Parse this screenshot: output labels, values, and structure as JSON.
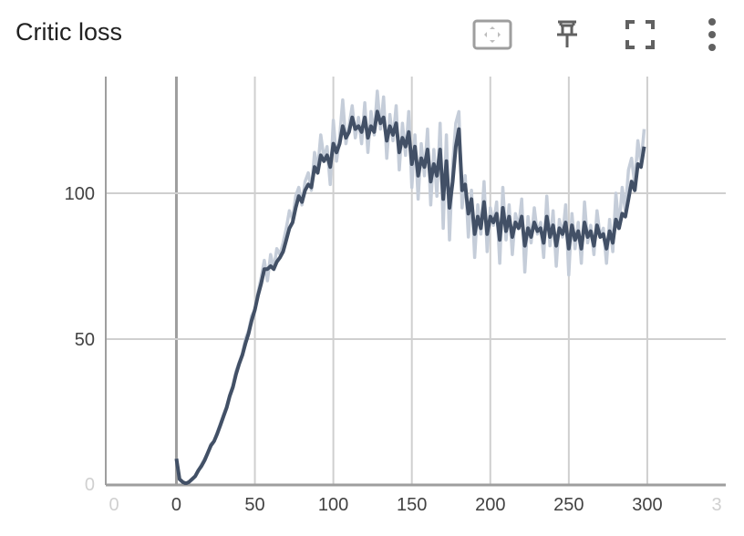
{
  "card": {
    "title": "Critic loss",
    "toolbar_icons": [
      "fit-domain-icon",
      "pin-icon",
      "fullscreen-icon",
      "more-vert-icon"
    ]
  },
  "chart_data": {
    "type": "line",
    "title": "Critic loss",
    "xlabel": "",
    "ylabel": "",
    "xlim": [
      -45,
      350
    ],
    "ylim": [
      0,
      140
    ],
    "x_ticks": [
      0,
      50,
      100,
      150,
      200,
      250,
      300
    ],
    "x_tick_labels_faint": [
      "0",
      "3"
    ],
    "y_ticks": [
      50,
      100
    ],
    "y_tick_labels_faint": [
      "0"
    ],
    "grid": true,
    "colors": {
      "smoothed": "#425066",
      "raw": "#c5cdd9",
      "grid": "#cfcfcf",
      "axis": "#9e9e9e"
    },
    "series": [
      {
        "style": "raw",
        "x": [
          0,
          2,
          4,
          6,
          8,
          10,
          12,
          14,
          16,
          18,
          20,
          22,
          24,
          26,
          28,
          30,
          32,
          34,
          36,
          38,
          40,
          42,
          44,
          46,
          48,
          50,
          52,
          54,
          56,
          58,
          60,
          62,
          64,
          66,
          68,
          70,
          72,
          74,
          76,
          78,
          80,
          82,
          84,
          86,
          88,
          90,
          92,
          94,
          96,
          98,
          100,
          102,
          104,
          106,
          108,
          110,
          112,
          114,
          116,
          118,
          120,
          122,
          124,
          126,
          128,
          130,
          132,
          134,
          136,
          138,
          140,
          142,
          144,
          146,
          148,
          150,
          152,
          154,
          156,
          158,
          160,
          162,
          164,
          166,
          168,
          170,
          172,
          174,
          176,
          178,
          180,
          182,
          184,
          186,
          188,
          190,
          192,
          194,
          196,
          198,
          200,
          202,
          204,
          206,
          208,
          210,
          212,
          214,
          216,
          218,
          220,
          222,
          224,
          226,
          228,
          230,
          232,
          234,
          236,
          238,
          240,
          242,
          244,
          246,
          248,
          250,
          252,
          254,
          256,
          258,
          260,
          262,
          264,
          266,
          268,
          270,
          272,
          274,
          276,
          278,
          280,
          282,
          284,
          286,
          288,
          290,
          292,
          294,
          296,
          298
        ],
        "y": [
          9,
          2,
          1,
          0.5,
          1,
          2,
          3,
          5,
          7,
          9,
          11,
          14,
          15,
          18,
          21,
          24,
          27,
          31,
          34,
          39,
          42,
          45,
          50,
          53,
          58,
          60,
          66,
          71,
          77,
          70,
          79,
          74,
          81,
          79,
          83,
          88,
          94,
          91,
          99,
          102,
          96,
          104,
          107,
          101,
          114,
          108,
          120,
          112,
          116,
          103,
          125,
          111,
          119,
          132,
          117,
          123,
          130,
          119,
          126,
          117,
          131,
          114,
          128,
          120,
          135,
          122,
          133,
          112,
          127,
          118,
          130,
          108,
          124,
          113,
          128,
          102,
          120,
          98,
          117,
          106,
          122,
          96,
          115,
          99,
          124,
          88,
          120,
          84,
          110,
          124,
          128,
          95,
          106,
          85,
          101,
          78,
          96,
          86,
          104,
          80,
          95,
          89,
          97,
          76,
          102,
          84,
          96,
          79,
          93,
          88,
          98,
          73,
          92,
          83,
          95,
          86,
          90,
          78,
          99,
          82,
          94,
          75,
          91,
          85,
          96,
          72,
          93,
          81,
          90,
          76,
          97,
          83,
          89,
          79,
          94,
          85,
          88,
          76,
          91,
          80,
          100,
          88,
          102,
          94,
          108,
          112,
          103,
          118,
          110,
          122
        ]
      },
      {
        "style": "smoothed",
        "x": [
          0,
          2,
          4,
          6,
          8,
          10,
          12,
          14,
          16,
          18,
          20,
          22,
          24,
          26,
          28,
          30,
          32,
          34,
          36,
          38,
          40,
          42,
          44,
          46,
          48,
          50,
          52,
          54,
          56,
          58,
          60,
          62,
          64,
          66,
          68,
          70,
          72,
          74,
          76,
          78,
          80,
          82,
          84,
          86,
          88,
          90,
          92,
          94,
          96,
          98,
          100,
          102,
          104,
          106,
          108,
          110,
          112,
          114,
          116,
          118,
          120,
          122,
          124,
          126,
          128,
          130,
          132,
          134,
          136,
          138,
          140,
          142,
          144,
          146,
          148,
          150,
          152,
          154,
          156,
          158,
          160,
          162,
          164,
          166,
          168,
          170,
          172,
          174,
          176,
          178,
          180,
          182,
          184,
          186,
          188,
          190,
          192,
          194,
          196,
          198,
          200,
          202,
          204,
          206,
          208,
          210,
          212,
          214,
          216,
          218,
          220,
          222,
          224,
          226,
          228,
          230,
          232,
          234,
          236,
          238,
          240,
          242,
          244,
          246,
          248,
          250,
          252,
          254,
          256,
          258,
          260,
          262,
          264,
          266,
          268,
          270,
          272,
          274,
          276,
          278,
          280,
          282,
          284,
          286,
          288,
          290,
          292,
          294,
          296,
          298
        ],
        "y": [
          9,
          2,
          1,
          0.5,
          1,
          2,
          3,
          5,
          6.5,
          8.5,
          11,
          13.5,
          15,
          17.5,
          20.5,
          23.5,
          26.5,
          30.5,
          33.5,
          38,
          41.5,
          44.5,
          48.5,
          52,
          56.5,
          60,
          65,
          69,
          74,
          74,
          75,
          74,
          76.5,
          78,
          80,
          84,
          88,
          90,
          95,
          99,
          97,
          101,
          103,
          102,
          109,
          107,
          113,
          111,
          113,
          109,
          117,
          114,
          117,
          123,
          119,
          121,
          126,
          122,
          123,
          121,
          126,
          119,
          123,
          121,
          128,
          124,
          126,
          118,
          123,
          120,
          124,
          114,
          119,
          116,
          121,
          110,
          116,
          106,
          112,
          109,
          115,
          104,
          110,
          106,
          115,
          98,
          111,
          95,
          104,
          116,
          122,
          101,
          103,
          93,
          98,
          86,
          92,
          88,
          97,
          86,
          92,
          90,
          93,
          84,
          95,
          87,
          92,
          85,
          90,
          88,
          92,
          82,
          88,
          85,
          90,
          87,
          88,
          83,
          92,
          85,
          89,
          82,
          88,
          86,
          90,
          81,
          89,
          84,
          87,
          81,
          90,
          85,
          87,
          82,
          89,
          85,
          86,
          81,
          87,
          83,
          91,
          88,
          93,
          92,
          98,
          104,
          101,
          110,
          109,
          116
        ]
      }
    ]
  }
}
